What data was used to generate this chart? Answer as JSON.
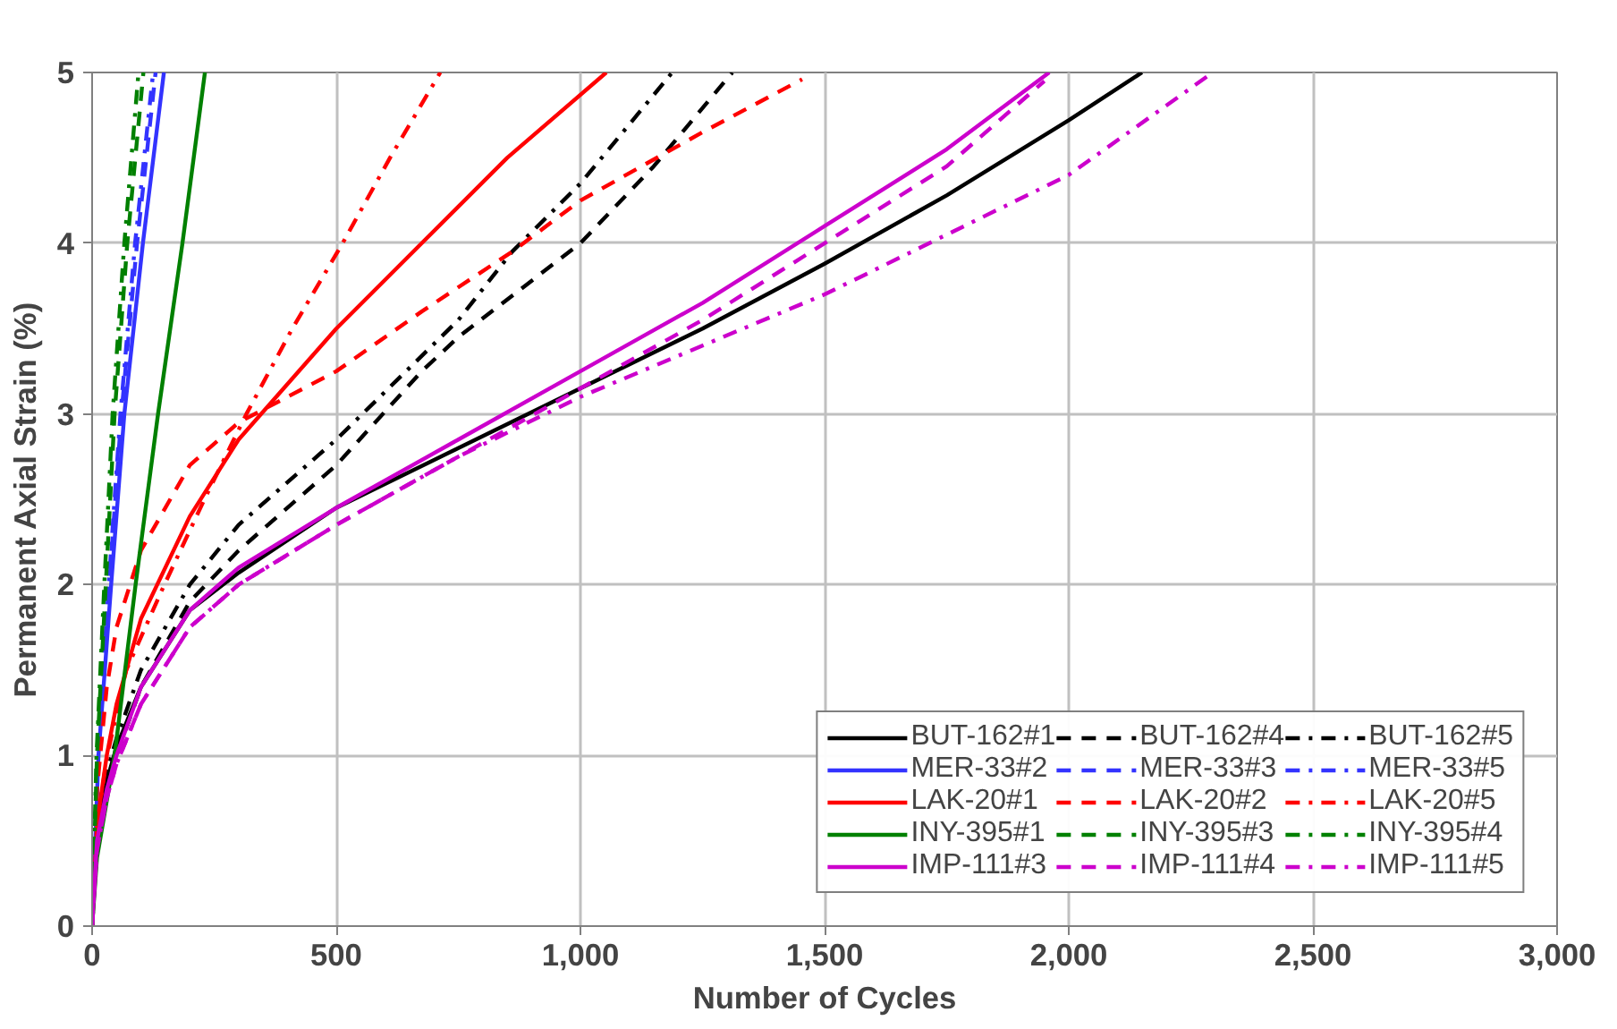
{
  "chart_data": {
    "type": "line",
    "xlabel": "Number of Cycles",
    "ylabel": "Permanent Axial Strain (%)",
    "xlim": [
      0,
      3000
    ],
    "xticks": [
      0,
      500,
      {
        "value": 1000,
        "label": "1,000"
      },
      {
        "value": 1500,
        "label": "1,500"
      },
      {
        "value": 2000,
        "label": "2,000"
      },
      {
        "value": 2500,
        "label": "2,500"
      },
      {
        "value": 3000,
        "label": "3,000"
      }
    ],
    "ylim": [
      0,
      5
    ],
    "yticks": [
      0,
      1,
      2,
      3,
      4,
      5
    ],
    "grid": true,
    "legend": "bottom right",
    "marker": "none",
    "series": [
      {
        "name": "BUT-162#1",
        "color": "#000000",
        "line_style": "solid",
        "x": [
          0,
          10,
          30,
          50,
          100,
          200,
          300,
          500,
          750,
          1000,
          1250,
          1500,
          1750,
          2000,
          2150
        ],
        "values": [
          0,
          0.55,
          0.85,
          1.05,
          1.4,
          1.85,
          2.07,
          2.45,
          2.8,
          3.15,
          3.5,
          3.88,
          4.28,
          4.72,
          5
        ]
      },
      {
        "name": "BUT-162#4",
        "color": "#000000",
        "line_style": "dashed",
        "x": [
          0,
          10,
          30,
          50,
          100,
          200,
          300,
          500,
          675,
          750,
          1000,
          1150,
          1311
        ],
        "values": [
          0,
          0.5,
          0.85,
          1.0,
          1.4,
          1.9,
          2.2,
          2.7,
          3.25,
          3.45,
          4.0,
          4.45,
          5
        ]
      },
      {
        "name": "BUT-162#5",
        "color": "#000000",
        "line_style": "dashdot",
        "x": [
          0,
          10,
          30,
          50,
          100,
          200,
          300,
          500,
          750,
          860,
          1000,
          1188
        ],
        "values": [
          0,
          0.55,
          0.9,
          1.1,
          1.5,
          2.0,
          2.35,
          2.85,
          3.55,
          3.95,
          4.35,
          5
        ]
      },
      {
        "name": "MER-33#2",
        "color": "#3333ff",
        "line_style": "solid",
        "x": [
          0,
          13,
          39,
          66,
          104,
          147
        ],
        "values": [
          0,
          1,
          2,
          3,
          4,
          5
        ]
      },
      {
        "name": "MER-33#3",
        "color": "#3333ff",
        "line_style": "dashed",
        "x": [
          0,
          12,
          35,
          60,
          92,
          130
        ],
        "values": [
          0,
          1,
          2,
          3,
          4,
          5
        ]
      },
      {
        "name": "MER-33#5",
        "color": "#3333ff",
        "line_style": "dashdot",
        "x": [
          0,
          12,
          34,
          58,
          88,
          125
        ],
        "values": [
          0,
          1,
          2,
          3,
          4,
          5
        ]
      },
      {
        "name": "LAK-20#1",
        "color": "#ff0000",
        "line_style": "solid",
        "x": [
          0,
          10,
          30,
          50,
          100,
          200,
          300,
          500,
          675,
          850,
          1053
        ],
        "values": [
          0,
          0.6,
          1.0,
          1.3,
          1.8,
          2.4,
          2.85,
          3.5,
          4.0,
          4.5,
          5
        ]
      },
      {
        "name": "LAK-20#2",
        "color": "#ff0000",
        "line_style": "dashed",
        "x": [
          0,
          10,
          30,
          50,
          100,
          200,
          300,
          500,
          675,
          860,
          1000,
          1250,
          1454
        ],
        "values": [
          0,
          0.8,
          1.4,
          1.75,
          2.2,
          2.7,
          2.95,
          3.25,
          3.6,
          3.95,
          4.25,
          4.65,
          4.96
        ]
      },
      {
        "name": "LAK-20#5",
        "color": "#ff0000",
        "line_style": "dashdot",
        "x": [
          0,
          10,
          31,
          70,
          148,
          230,
          316,
          410,
          513,
          610,
          713
        ],
        "values": [
          0,
          0.6,
          1.0,
          1.5,
          2.0,
          2.5,
          3.0,
          3.5,
          4.0,
          4.5,
          5
        ]
      },
      {
        "name": "INY-395#1",
        "color": "#008000",
        "line_style": "solid",
        "x": [
          0,
          10,
          46,
          89,
          135,
          185,
          231
        ],
        "values": [
          0,
          0.4,
          1,
          2,
          3,
          4,
          5
        ]
      },
      {
        "name": "INY-395#3",
        "color": "#008000",
        "line_style": "dashed",
        "x": [
          0,
          10,
          28,
          46,
          72,
          105
        ],
        "values": [
          0,
          1,
          2,
          3,
          4,
          5
        ]
      },
      {
        "name": "INY-395#4",
        "color": "#008000",
        "line_style": "dashdot",
        "x": [
          0,
          9,
          25,
          42,
          66,
          95
        ],
        "values": [
          0,
          1,
          2,
          3,
          4,
          5
        ]
      },
      {
        "name": "IMP-111#3",
        "color": "#cc00cc",
        "line_style": "solid",
        "x": [
          0,
          10,
          30,
          50,
          100,
          200,
          300,
          500,
          750,
          1000,
          1250,
          1500,
          1750,
          1960
        ],
        "values": [
          0,
          0.5,
          0.8,
          1.0,
          1.4,
          1.85,
          2.1,
          2.45,
          2.85,
          3.25,
          3.65,
          4.1,
          4.55,
          5
        ]
      },
      {
        "name": "IMP-111#4",
        "color": "#cc00cc",
        "line_style": "dashed",
        "x": [
          0,
          10,
          30,
          50,
          100,
          200,
          300,
          500,
          750,
          1000,
          1250,
          1500,
          1750,
          1950
        ],
        "values": [
          0,
          0.45,
          0.75,
          0.95,
          1.3,
          1.75,
          2.0,
          2.35,
          2.75,
          3.15,
          3.55,
          4.0,
          4.45,
          4.95
        ]
      },
      {
        "name": "IMP-111#5",
        "color": "#cc00cc",
        "line_style": "dashdot",
        "x": [
          0,
          10,
          30,
          50,
          100,
          200,
          300,
          500,
          750,
          1000,
          1250,
          1500,
          1750,
          2000,
          2295
        ],
        "values": [
          0,
          0.45,
          0.75,
          0.95,
          1.3,
          1.75,
          2.0,
          2.35,
          2.75,
          3.1,
          3.4,
          3.7,
          4.05,
          4.4,
          5
        ]
      }
    ]
  }
}
